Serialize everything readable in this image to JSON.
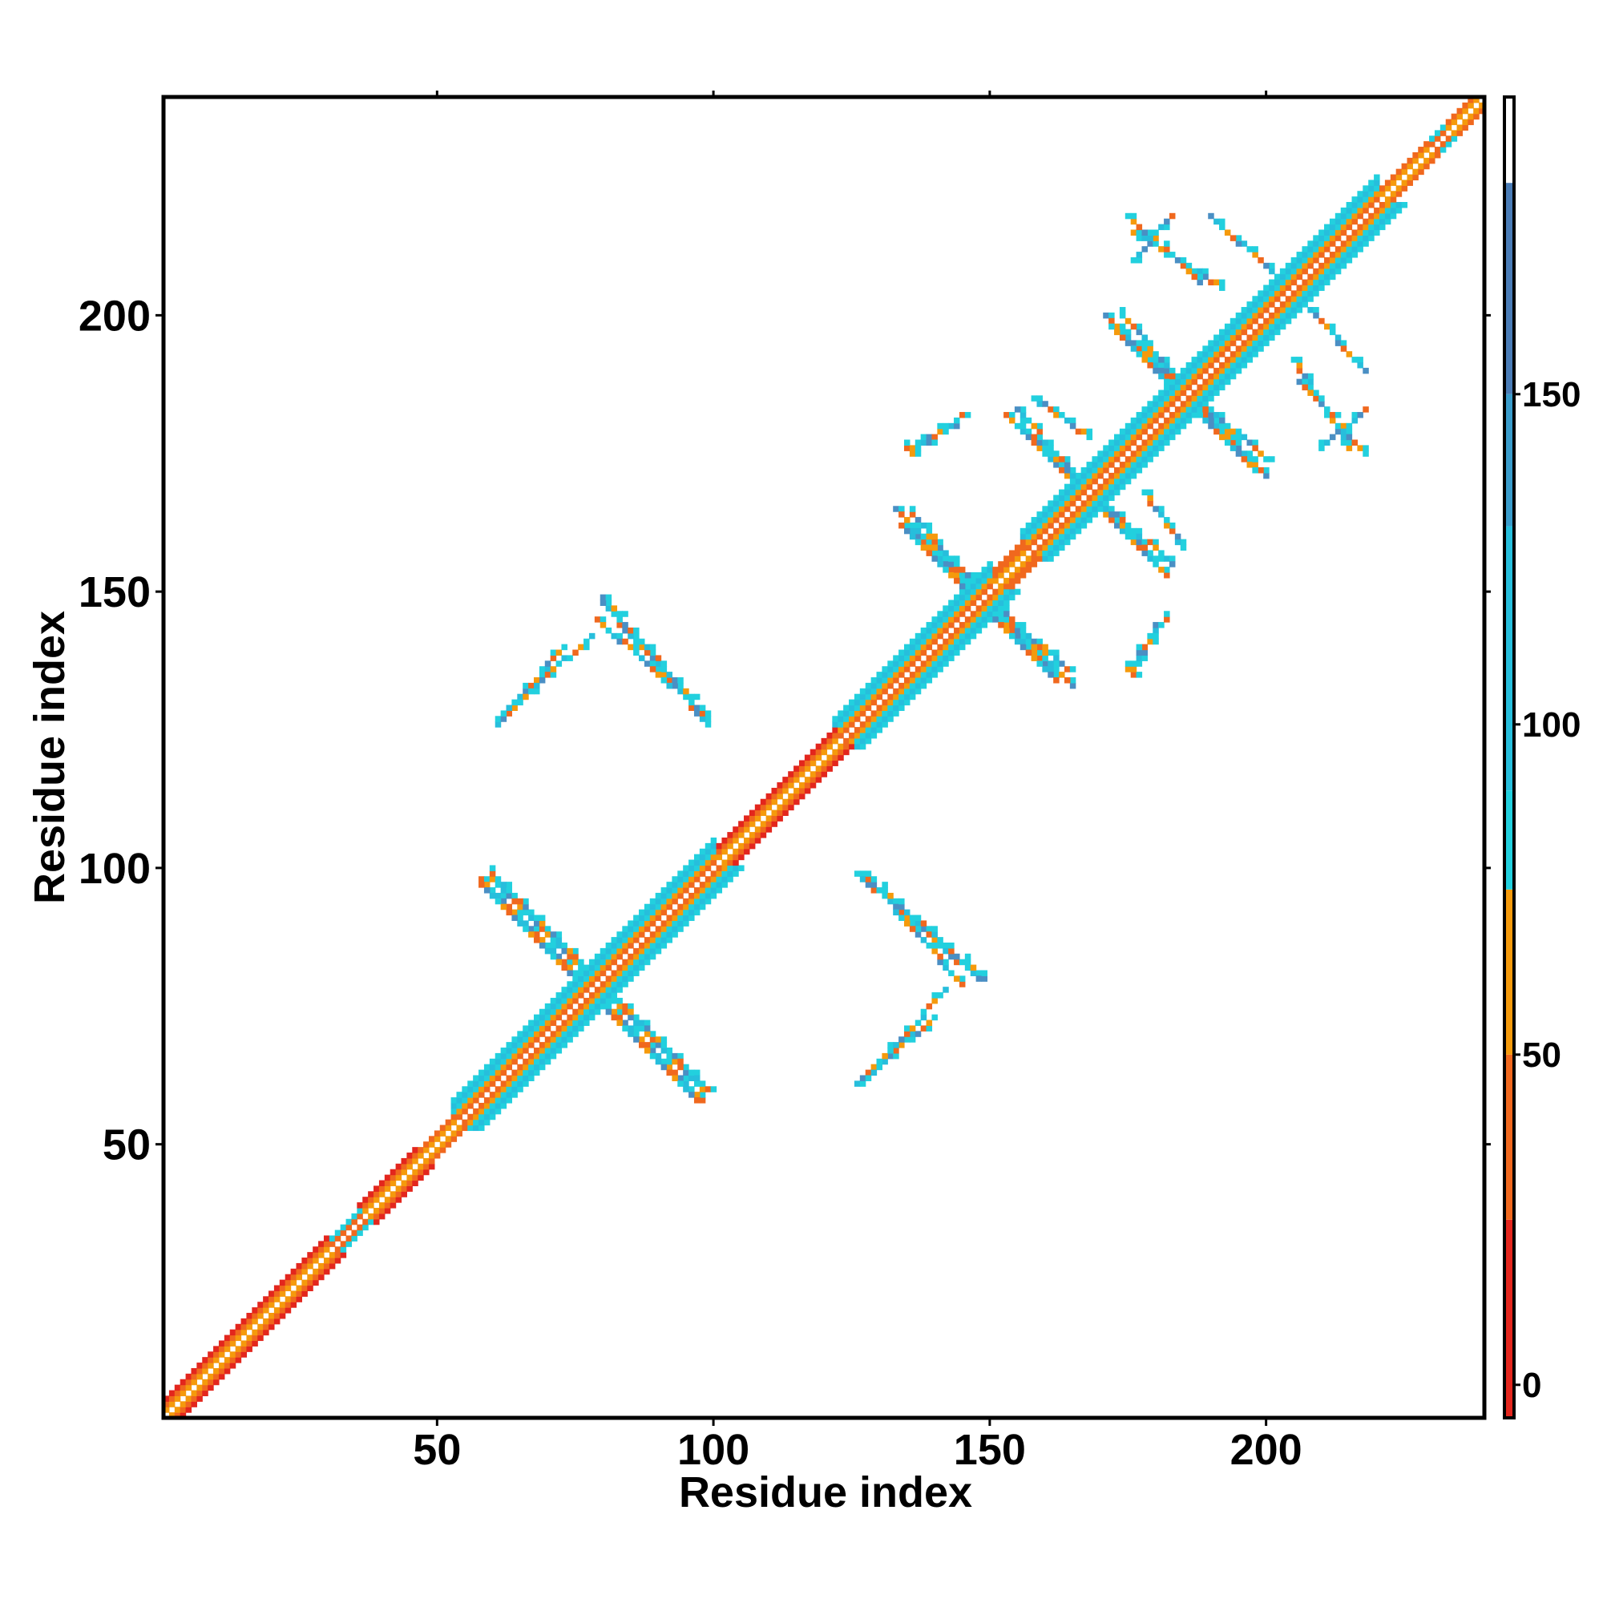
{
  "chart_data": {
    "type": "heatmap",
    "title": "",
    "xlabel": "Residue index",
    "ylabel": "Residue index",
    "xlim": [
      0.5,
      239.5
    ],
    "ylim": [
      0.5,
      239.5
    ],
    "x_ticks": [
      50,
      100,
      150,
      200
    ],
    "y_ticks": [
      50,
      100,
      150,
      200
    ],
    "x_tick_labels": [
      "50",
      "100",
      "150",
      "200"
    ],
    "y_tick_labels": [
      "50",
      "100",
      "150",
      "200"
    ],
    "grid": false,
    "colorbar": {
      "position": "right",
      "range": [
        -5,
        195
      ],
      "ticks": [
        0,
        50,
        100,
        150
      ],
      "tick_labels": [
        "0",
        "50",
        "100",
        "150"
      ],
      "bands": [
        {
          "from": -5,
          "to": 25,
          "color": "#e3261d"
        },
        {
          "from": 25,
          "to": 50,
          "color": "#f0681e"
        },
        {
          "from": 50,
          "to": 75,
          "color": "#f59a0c"
        },
        {
          "from": 75,
          "to": 90,
          "color": "#22d0de"
        },
        {
          "from": 90,
          "to": 130,
          "color": "#27bedc"
        },
        {
          "from": 130,
          "to": 150,
          "color": "#3a9ccb"
        },
        {
          "from": 150,
          "to": 182,
          "color": "#4a7cb6"
        },
        {
          "from": 182,
          "to": 195,
          "color": "#ffffff"
        }
      ]
    },
    "colors": {
      "red": "#e3261d",
      "orange_red": "#f0681e",
      "orange": "#f59a0c",
      "cyan": "#22d0de",
      "sky": "#27bedc",
      "steel": "#4a8fc4",
      "diag": "#ffffff"
    },
    "diagonal_segments": [
      {
        "from": 1,
        "to": 30,
        "color": "orange_red",
        "width": 3
      },
      {
        "from": 30,
        "to": 36,
        "color": "sky",
        "width": 2
      },
      {
        "from": 36,
        "to": 46,
        "color": "orange_red",
        "width": 3
      },
      {
        "from": 46,
        "to": 53,
        "color": "orange_red",
        "width": 2
      },
      {
        "from": 53,
        "to": 100,
        "color": "sky",
        "width": 5
      },
      {
        "from": 100,
        "to": 122,
        "color": "orange_red",
        "width": 3
      },
      {
        "from": 122,
        "to": 150,
        "color": "sky",
        "width": 5
      },
      {
        "from": 150,
        "to": 156,
        "color": "orange",
        "width": 3
      },
      {
        "from": 156,
        "to": 220,
        "color": "sky",
        "width": 5
      },
      {
        "from": 220,
        "to": 229,
        "color": "orange_red",
        "width": 2
      },
      {
        "from": 229,
        "to": 232,
        "color": "sky",
        "width": 2
      },
      {
        "from": 232,
        "to": 239,
        "color": "orange_red",
        "width": 2
      }
    ],
    "contact_segments": [
      {
        "x1": 58,
        "y1": 98,
        "x2": 97,
        "y2": 58
      },
      {
        "x1": 60,
        "y1": 98,
        "x2": 99,
        "y2": 60
      },
      {
        "x1": 126,
        "y1": 99,
        "x2": 148,
        "y2": 80
      },
      {
        "x1": 126,
        "y1": 61,
        "x2": 140,
        "y2": 73
      },
      {
        "x1": 80,
        "y1": 149,
        "x2": 99,
        "y2": 127
      },
      {
        "x1": 79,
        "y1": 145,
        "x2": 97,
        "y2": 129
      },
      {
        "x1": 61,
        "y1": 127,
        "x2": 78,
        "y2": 142
      },
      {
        "x1": 135,
        "y1": 162,
        "x2": 162,
        "y2": 134
      },
      {
        "x1": 137,
        "y1": 160,
        "x2": 164,
        "y2": 136
      },
      {
        "x1": 133,
        "y1": 165,
        "x2": 140,
        "y2": 158
      },
      {
        "x1": 153,
        "y1": 182,
        "x2": 180,
        "y2": 156
      },
      {
        "x1": 155,
        "y1": 180,
        "x2": 183,
        "y2": 155
      },
      {
        "x1": 158,
        "y1": 185,
        "x2": 168,
        "y2": 178
      },
      {
        "x1": 152,
        "y1": 146,
        "x2": 160,
        "y2": 139
      },
      {
        "x1": 171,
        "y1": 200,
        "x2": 198,
        "y2": 172
      },
      {
        "x1": 173,
        "y1": 198,
        "x2": 200,
        "y2": 174
      },
      {
        "x1": 176,
        "y1": 215,
        "x2": 192,
        "y2": 205
      },
      {
        "x1": 176,
        "y1": 210,
        "x2": 183,
        "y2": 218
      },
      {
        "x1": 208,
        "y1": 201,
        "x2": 218,
        "y2": 190
      },
      {
        "x1": 206,
        "y1": 188,
        "x2": 218,
        "y2": 175
      },
      {
        "x1": 176,
        "y1": 135,
        "x2": 180,
        "y2": 144
      },
      {
        "x1": 136,
        "y1": 175,
        "x2": 145,
        "y2": 182
      }
    ]
  }
}
